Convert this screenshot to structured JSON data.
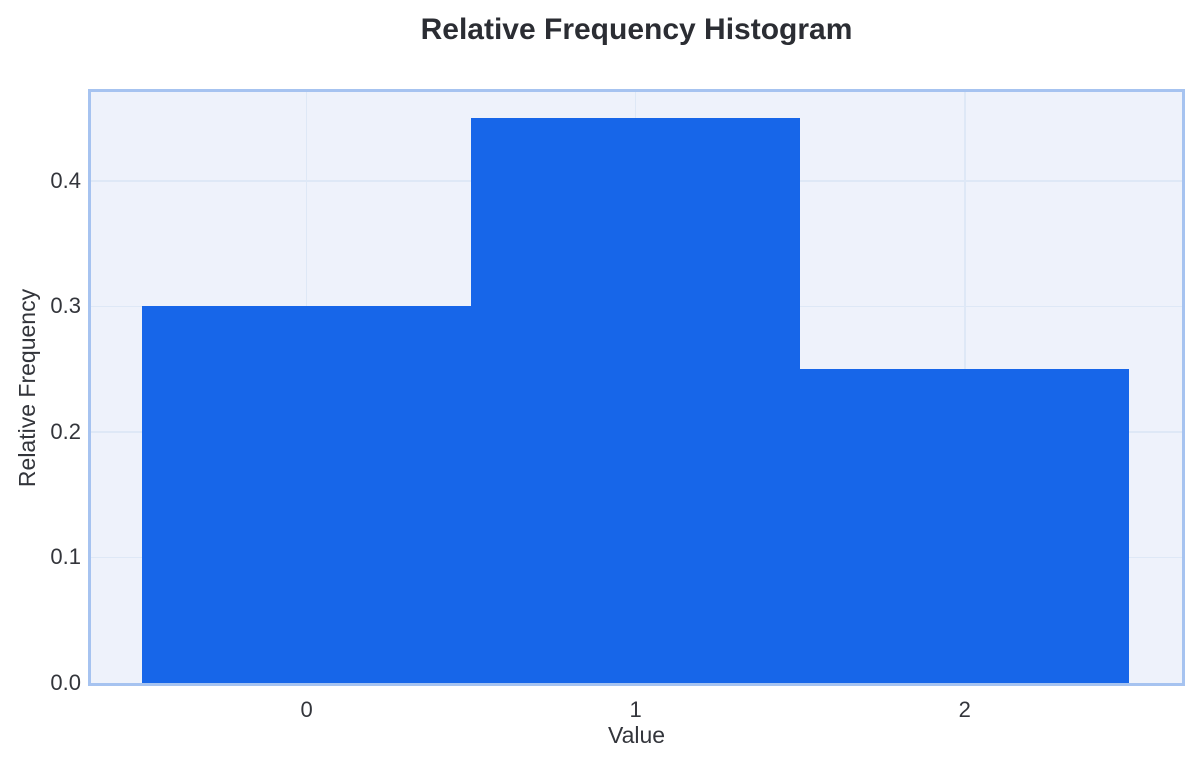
{
  "figure": {
    "title": "Relative Frequency Histogram"
  },
  "chart_data": {
    "type": "bar",
    "title": "Relative Frequency Histogram",
    "xlabel": "Value",
    "ylabel": "Relative Frequency",
    "categories": [
      0,
      1,
      2
    ],
    "values": [
      0.3,
      0.45,
      0.25
    ],
    "bar_width": 1.0,
    "xlim": [
      -0.655,
      2.66
    ],
    "ylim": [
      0,
      0.4707
    ],
    "x_tick_values": [
      0,
      1,
      2
    ],
    "x_tick_labels": [
      "0",
      "1",
      "2"
    ],
    "y_tick_values": [
      0,
      0.1,
      0.2,
      0.3,
      0.4
    ],
    "y_tick_labels": [
      "0.0",
      "0.1",
      "0.2",
      "0.3",
      "0.4"
    ],
    "grid": true,
    "legend": "none",
    "colors": {
      "bar": "#1766e9",
      "plot_bg": "#eef2fb",
      "plot_border": "#a6c3f0",
      "grid": "#dee8f6",
      "title_text": "#2b2d33",
      "tick_text": "#33353b"
    }
  }
}
